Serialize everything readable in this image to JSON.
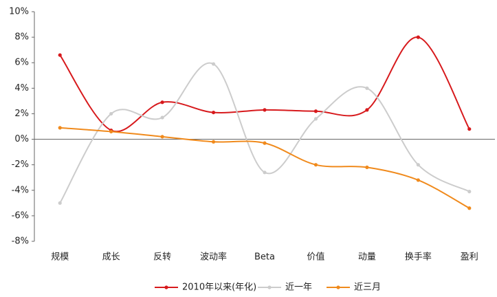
{
  "chart_data": {
    "type": "line",
    "categories": [
      "规模",
      "成长",
      "反转",
      "波动率",
      "Beta",
      "价值",
      "动量",
      "换手率",
      "盈利"
    ],
    "series": [
      {
        "name": "2010年以来(年化)",
        "color": "#d7191c",
        "values": [
          6.6,
          0.7,
          2.9,
          2.1,
          2.3,
          2.2,
          2.3,
          8.0,
          0.8
        ]
      },
      {
        "name": "近一年",
        "color": "#cccccc",
        "values": [
          -5.0,
          2.0,
          1.7,
          5.9,
          -2.6,
          1.6,
          4.0,
          -2.0,
          -4.1
        ]
      },
      {
        "name": "近三月",
        "color": "#f08a1c",
        "values": [
          0.9,
          0.6,
          0.2,
          -0.2,
          -0.3,
          -2.0,
          -2.2,
          -3.2,
          -5.4
        ]
      }
    ],
    "ylim": [
      -8,
      10
    ],
    "yticks": [
      {
        "value": -8,
        "label": "-8%"
      },
      {
        "value": -6,
        "label": "-6%"
      },
      {
        "value": -4,
        "label": "-4%"
      },
      {
        "value": -2,
        "label": "-2%"
      },
      {
        "value": 0,
        "label": "0%"
      },
      {
        "value": 2,
        "label": "2%"
      },
      {
        "value": 4,
        "label": "4%"
      },
      {
        "value": 6,
        "label": "6%"
      },
      {
        "value": 8,
        "label": "8%"
      },
      {
        "value": 10,
        "label": "10%"
      }
    ],
    "smooth": true,
    "legend": "bottom"
  }
}
